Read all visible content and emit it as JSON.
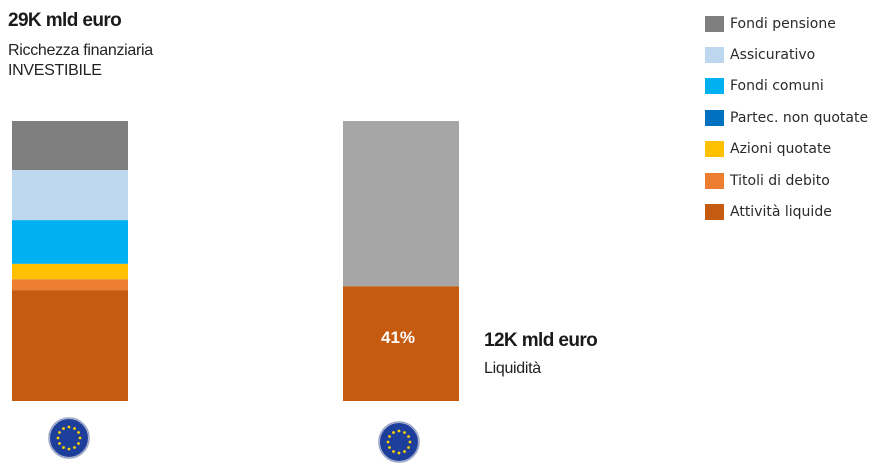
{
  "header": {
    "left_value": "29K mld euro",
    "left_sub1": "Ricchezza finanziaria",
    "left_sub2": "INVESTIBILE",
    "right_value": "12K mld euro",
    "right_sub": "Liquidità"
  },
  "chart_data": {
    "type": "bar",
    "stacked": true,
    "categories": [
      "",
      ""
    ],
    "series": [
      {
        "name": "Attività liquide",
        "color": "#c55a11",
        "values": [
          39.6,
          41
        ]
      },
      {
        "name": "Titoli di debito",
        "color": "#ed7d31",
        "values": [
          3.9,
          0
        ]
      },
      {
        "name": "Azioni quotate",
        "color": "#ffc000",
        "values": [
          5.5,
          0
        ]
      },
      {
        "name": "Partec. non quotate",
        "color": "#0070c0",
        "values": [
          0,
          0
        ]
      },
      {
        "name": "Fondi comuni",
        "color": "#00b0f0",
        "values": [
          15.6,
          0
        ]
      },
      {
        "name": "Assicurativo",
        "color": "#bdd7ee",
        "values": [
          17.9,
          0
        ]
      },
      {
        "name": "Fondi pensione",
        "color": "#7f7f7f",
        "values": [
          17.5,
          0
        ]
      },
      {
        "name": "",
        "color": "#a6a6a6",
        "values": [
          0,
          59
        ]
      }
    ],
    "ylim": [
      0,
      100
    ],
    "data_labels": [
      {
        "category_index": 1,
        "series": "Attività liquide",
        "text": "41%"
      }
    ],
    "legend": "top-right",
    "grid": false,
    "title": "",
    "xlabel": "",
    "ylabel": ""
  },
  "legend_items": [
    {
      "label": "Fondi pensione",
      "color": "#7f7f7f"
    },
    {
      "label": "Assicurativo",
      "color": "#bdd7ee"
    },
    {
      "label": "Fondi comuni",
      "color": "#00b0f0"
    },
    {
      "label": "Partec. non quotate",
      "color": "#0070c0"
    },
    {
      "label": "Azioni quotate",
      "color": "#ffc000"
    },
    {
      "label": "Titoli di debito",
      "color": "#ed7d31"
    },
    {
      "label": "Attività liquide",
      "color": "#c55a11"
    }
  ],
  "icons": [
    "eu-flag-icon",
    "eu-flag-icon"
  ]
}
